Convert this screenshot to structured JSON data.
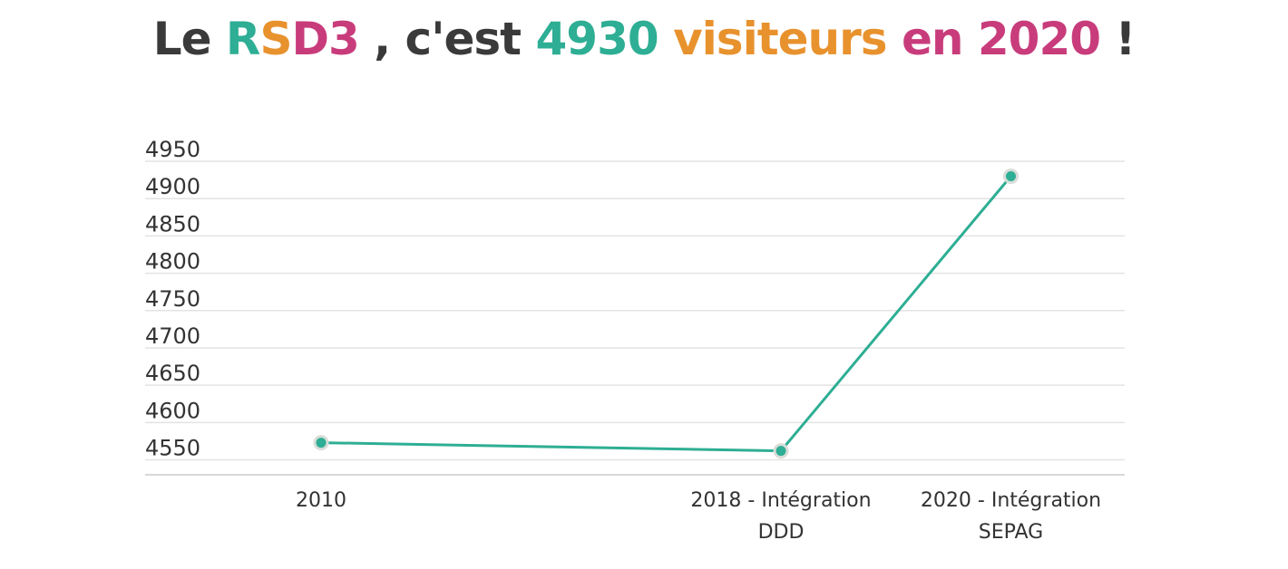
{
  "title": {
    "segments": [
      {
        "text": "Le ",
        "color": "#3a3a3a"
      },
      {
        "text": "R",
        "color": "#2eae94"
      },
      {
        "text": "S",
        "color": "#e8922e"
      },
      {
        "text": "D3",
        "color": "#c83c7c"
      },
      {
        "text": " , c'est ",
        "color": "#3a3a3a"
      },
      {
        "text": "4930 ",
        "color": "#2eae94"
      },
      {
        "text": "visiteurs ",
        "color": "#e8922e"
      },
      {
        "text": "en 2020",
        "color": "#c83c7c"
      },
      {
        "text": " !",
        "color": "#3a3a3a"
      }
    ]
  },
  "chart_data": {
    "type": "line",
    "title": "Le RSD3 , c'est 4930 visiteurs en 2020 !",
    "xlabel": "",
    "ylabel": "",
    "categories": [
      [
        "2010"
      ],
      [
        "2018 - Intégration",
        "DDD"
      ],
      [
        "2020 - Intégration",
        "SEPAG"
      ]
    ],
    "category_positions": [
      0,
      1,
      1.5
    ],
    "series": [
      {
        "values": [
          4573,
          4562,
          4930
        ],
        "color": "#2eae94"
      }
    ],
    "yticks": [
      4550,
      4600,
      4650,
      4700,
      4750,
      4800,
      4850,
      4900,
      4950
    ],
    "ylim": [
      4530,
      4950
    ],
    "grid": true,
    "legend": "none",
    "colors": {
      "line": "#2eae94",
      "marker": "#2eae94",
      "marker_border": "#d8ddd8",
      "grid": "#e3e3e3",
      "axis": "#cccccc",
      "text": "#333333"
    }
  }
}
